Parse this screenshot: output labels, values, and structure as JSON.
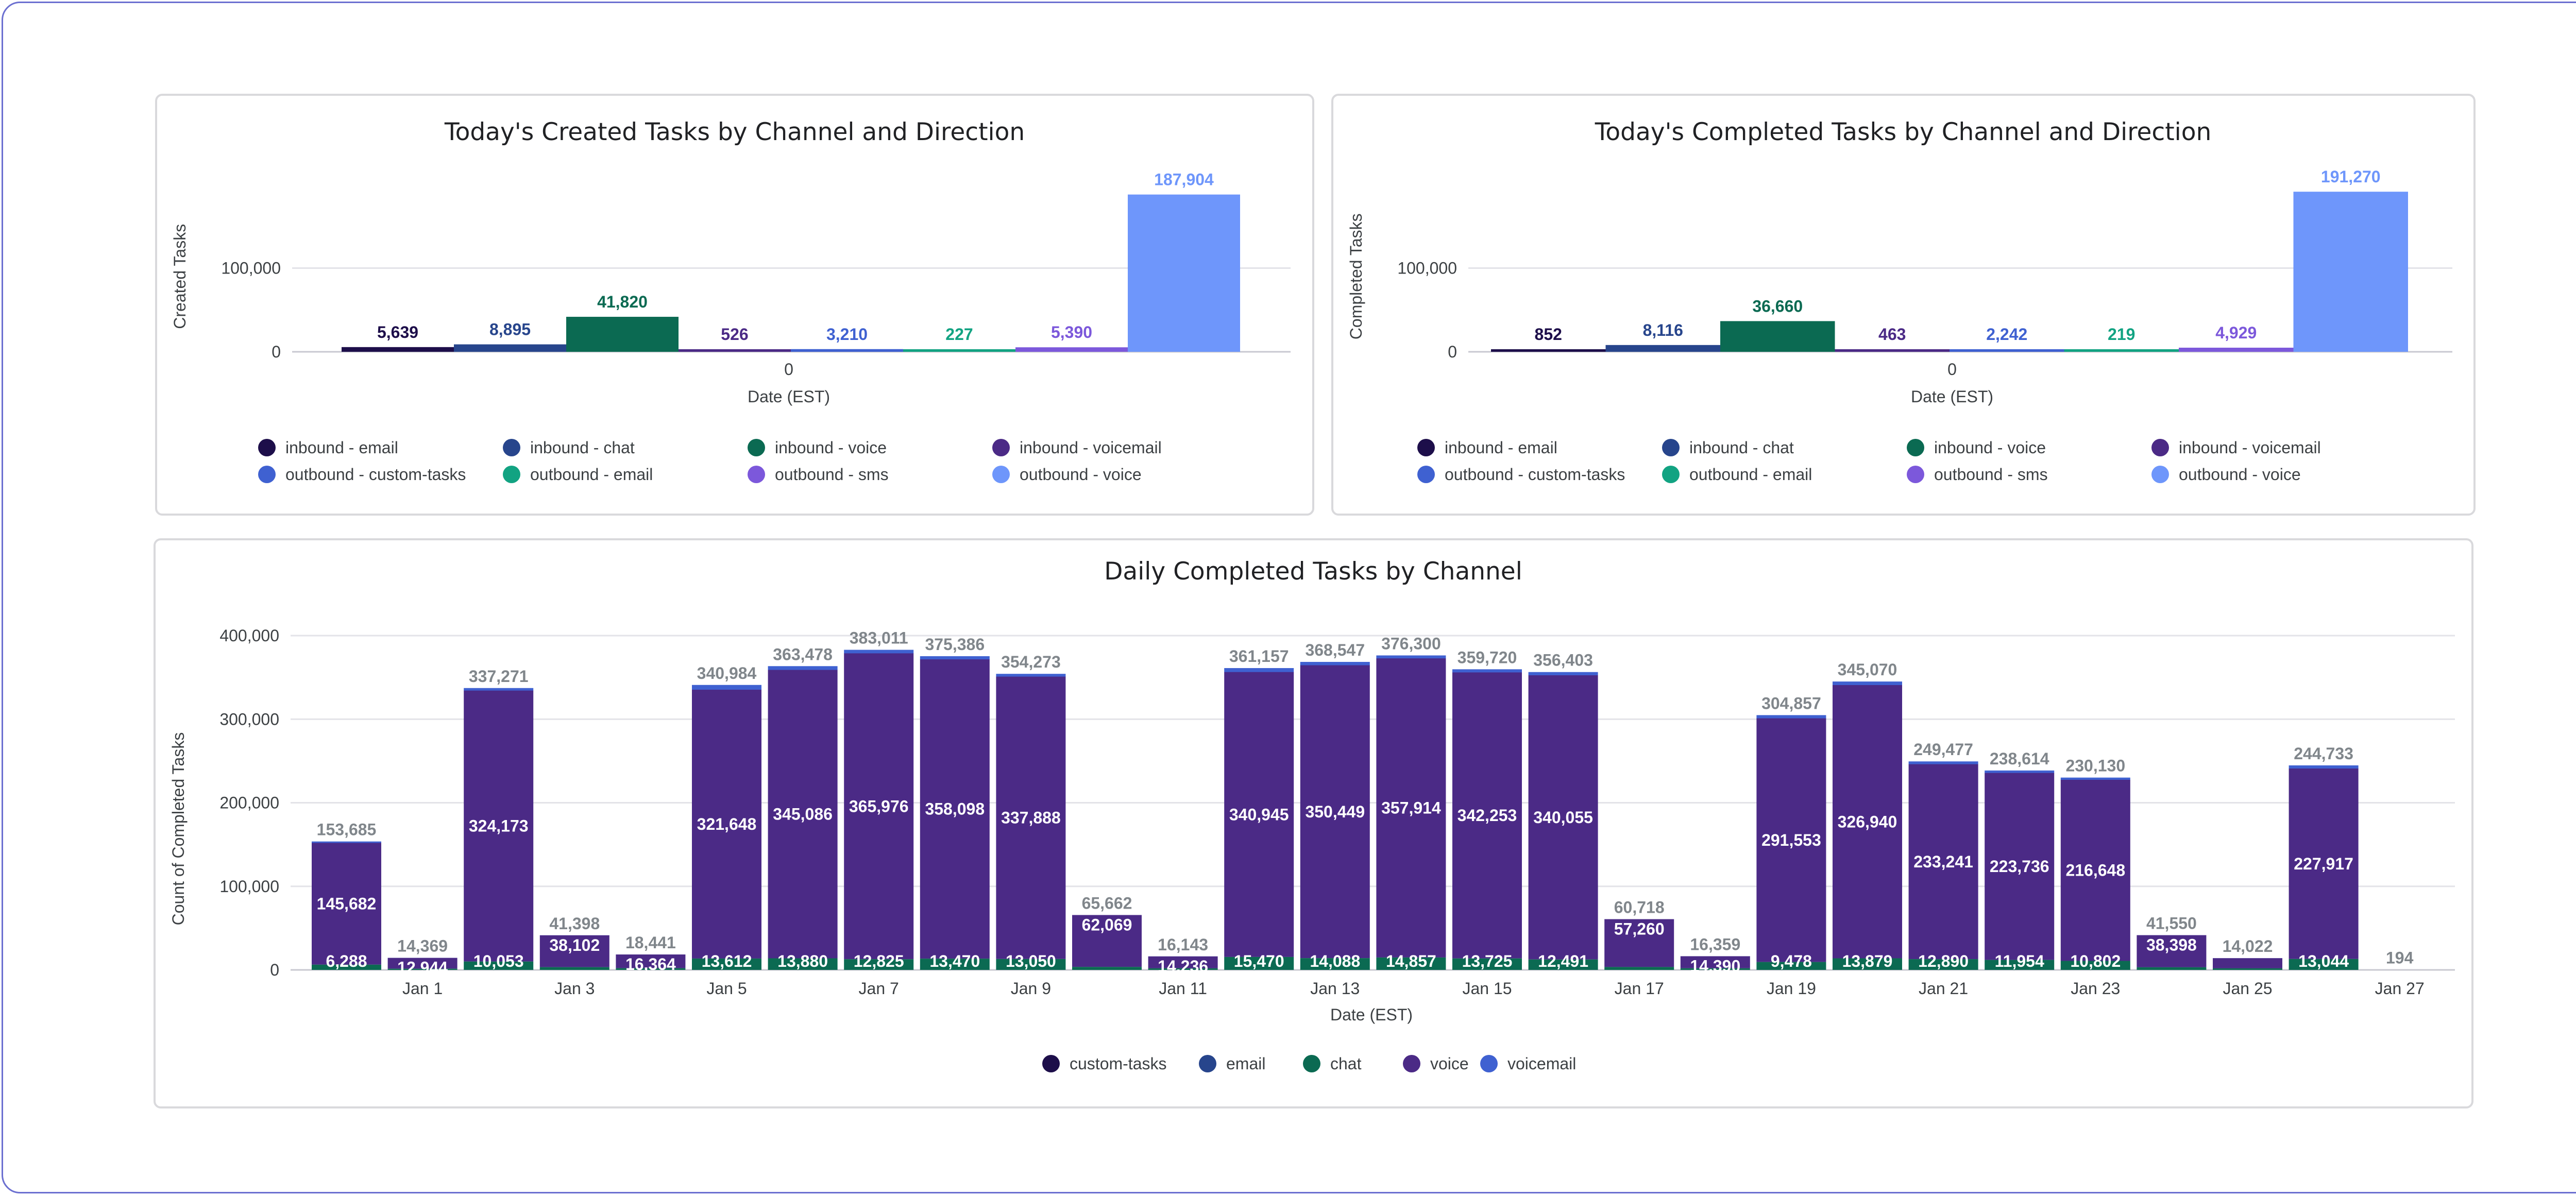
{
  "chart_data": [
    {
      "id": "created",
      "type": "bar",
      "title": "Today's Created Tasks by Channel and Direction",
      "xlabel": "Date (EST)",
      "ylabel": "Created Tasks",
      "categories": [
        "0"
      ],
      "yticks": [
        {
          "v": 0,
          "t": "0"
        },
        {
          "v": 100000,
          "t": "100,000"
        }
      ],
      "ylim": [
        0,
        200000
      ],
      "grid": true,
      "legend_position": "bottom",
      "series": [
        {
          "name": "inbound - email",
          "value": 5639,
          "label": "5,639",
          "color": "#1d0e4a"
        },
        {
          "name": "inbound - chat",
          "value": 8895,
          "label": "8,895",
          "color": "#27458c"
        },
        {
          "name": "inbound - voice",
          "value": 41820,
          "label": "41,820",
          "color": "#0b6a52"
        },
        {
          "name": "inbound - voicemail",
          "value": 526,
          "label": "526",
          "color": "#4b2a86"
        },
        {
          "name": "outbound - custom-tasks",
          "value": 3210,
          "label": "3,210",
          "color": "#3f61d1"
        },
        {
          "name": "outbound - email",
          "value": 227,
          "label": "227",
          "color": "#12a382"
        },
        {
          "name": "outbound - sms",
          "value": 5390,
          "label": "5,390",
          "color": "#7c58db"
        },
        {
          "name": "outbound - voice",
          "value": 187904,
          "label": "187,904",
          "color": "#6e96fb"
        }
      ]
    },
    {
      "id": "completed",
      "type": "bar",
      "title": "Today's Completed Tasks by Channel and Direction",
      "xlabel": "Date (EST)",
      "ylabel": "Completed Tasks",
      "categories": [
        "0"
      ],
      "yticks": [
        {
          "v": 0,
          "t": "0"
        },
        {
          "v": 100000,
          "t": "100,000"
        }
      ],
      "ylim": [
        0,
        200000
      ],
      "grid": true,
      "legend_position": "bottom",
      "series": [
        {
          "name": "inbound - email",
          "value": 852,
          "label": "852",
          "color": "#1d0e4a"
        },
        {
          "name": "inbound - chat",
          "value": 8116,
          "label": "8,116",
          "color": "#27458c"
        },
        {
          "name": "inbound - voice",
          "value": 36660,
          "label": "36,660",
          "color": "#0b6a52"
        },
        {
          "name": "inbound - voicemail",
          "value": 463,
          "label": "463",
          "color": "#4b2a86"
        },
        {
          "name": "outbound - custom-tasks",
          "value": 2242,
          "label": "2,242",
          "color": "#3f61d1"
        },
        {
          "name": "outbound - email",
          "value": 219,
          "label": "219",
          "color": "#12a382"
        },
        {
          "name": "outbound - sms",
          "value": 4929,
          "label": "4,929",
          "color": "#7c58db"
        },
        {
          "name": "outbound - voice",
          "value": 191270,
          "label": "191,270",
          "color": "#6e96fb"
        }
      ]
    },
    {
      "id": "daily",
      "type": "bar",
      "stacked": true,
      "title": "Daily Completed Tasks by Channel",
      "xlabel": "Date (EST)",
      "ylabel": "Count of Completed Tasks",
      "yticks": [
        {
          "v": 0,
          "t": "0"
        },
        {
          "v": 100000,
          "t": "100,000"
        },
        {
          "v": 200000,
          "t": "200,000"
        },
        {
          "v": 300000,
          "t": "300,000"
        },
        {
          "v": 400000,
          "t": "400,000"
        }
      ],
      "ylim": [
        0,
        400000
      ],
      "grid": true,
      "legend_position": "bottom",
      "x_tick_labels": [
        "Jan 1",
        "Jan 3",
        "Jan 5",
        "Jan 7",
        "Jan 9",
        "Jan 11",
        "Jan 13",
        "Jan 15",
        "Jan 17",
        "Jan 19",
        "Jan 21",
        "Jan 23",
        "Jan 25",
        "Jan 27"
      ],
      "legend": [
        {
          "name": "custom-tasks",
          "color": "#1d0e4a"
        },
        {
          "name": "email",
          "color": "#27458c"
        },
        {
          "name": "chat",
          "color": "#0b6a52"
        },
        {
          "name": "voice",
          "color": "#4b2a86"
        },
        {
          "name": "voicemail",
          "color": "#3f61d1"
        }
      ],
      "days": [
        {
          "chat": 6288,
          "chat_label": "6,288",
          "voice": 145682,
          "voice_label": "145,682",
          "total": 153685,
          "total_label": "153,685"
        },
        {
          "chat": 1425,
          "chat_label": "",
          "voice": 12944,
          "voice_label": "12,944",
          "total": 14369,
          "total_label": "14,369"
        },
        {
          "chat": 10053,
          "chat_label": "10,053",
          "voice": 324173,
          "voice_label": "324,173",
          "total": 337271,
          "total_label": "337,271"
        },
        {
          "chat": 3296,
          "chat_label": "",
          "voice": 38102,
          "voice_label": "38,102",
          "total": 41398,
          "total_label": "41,398"
        },
        {
          "chat": 2077,
          "chat_label": "",
          "voice": 16364,
          "voice_label": "16,364",
          "total": 18441,
          "total_label": "18,441"
        },
        {
          "chat": 13612,
          "chat_label": "13,612",
          "voice": 321648,
          "voice_label": "321,648",
          "total": 340984,
          "total_label": "340,984"
        },
        {
          "chat": 13880,
          "chat_label": "13,880",
          "voice": 345086,
          "voice_label": "345,086",
          "total": 363478,
          "total_label": "363,478"
        },
        {
          "chat": 12825,
          "chat_label": "12,825",
          "voice": 365976,
          "voice_label": "365,976",
          "total": 383011,
          "total_label": "383,011"
        },
        {
          "chat": 13470,
          "chat_label": "13,470",
          "voice": 358098,
          "voice_label": "358,098",
          "total": 375386,
          "total_label": "375,386"
        },
        {
          "chat": 13050,
          "chat_label": "13,050",
          "voice": 337888,
          "voice_label": "337,888",
          "total": 354273,
          "total_label": "354,273"
        },
        {
          "chat": 3593,
          "chat_label": "",
          "voice": 62069,
          "voice_label": "62,069",
          "total": 65662,
          "total_label": "65,662"
        },
        {
          "chat": 1907,
          "chat_label": "",
          "voice": 14236,
          "voice_label": "14,236",
          "total": 16143,
          "total_label": "16,143"
        },
        {
          "chat": 15470,
          "chat_label": "15,470",
          "voice": 340945,
          "voice_label": "340,945",
          "total": 361157,
          "total_label": "361,157"
        },
        {
          "chat": 14088,
          "chat_label": "14,088",
          "voice": 350449,
          "voice_label": "350,449",
          "total": 368547,
          "total_label": "368,547"
        },
        {
          "chat": 14857,
          "chat_label": "14,857",
          "voice": 357914,
          "voice_label": "357,914",
          "total": 376300,
          "total_label": "376,300"
        },
        {
          "chat": 13725,
          "chat_label": "13,725",
          "voice": 342253,
          "voice_label": "342,253",
          "total": 359720,
          "total_label": "359,720"
        },
        {
          "chat": 12491,
          "chat_label": "12,491",
          "voice": 340055,
          "voice_label": "340,055",
          "total": 356403,
          "total_label": "356,403"
        },
        {
          "chat": 3458,
          "chat_label": "",
          "voice": 57260,
          "voice_label": "57,260",
          "total": 60718,
          "total_label": "60,718"
        },
        {
          "chat": 1969,
          "chat_label": "",
          "voice": 14390,
          "voice_label": "14,390",
          "total": 16359,
          "total_label": "16,359"
        },
        {
          "chat": 9478,
          "chat_label": "9,478",
          "voice": 291553,
          "voice_label": "291,553",
          "total": 304857,
          "total_label": "304,857"
        },
        {
          "chat": 13879,
          "chat_label": "13,879",
          "voice": 326940,
          "voice_label": "326,940",
          "total": 345070,
          "total_label": "345,070"
        },
        {
          "chat": 12890,
          "chat_label": "12,890",
          "voice": 233241,
          "voice_label": "233,241",
          "total": 249477,
          "total_label": "249,477"
        },
        {
          "chat": 11954,
          "chat_label": "11,954",
          "voice": 223736,
          "voice_label": "223,736",
          "total": 238614,
          "total_label": "238,614"
        },
        {
          "chat": 10802,
          "chat_label": "10,802",
          "voice": 216648,
          "voice_label": "216,648",
          "total": 230130,
          "total_label": "230,130"
        },
        {
          "chat": 3152,
          "chat_label": "",
          "voice": 38398,
          "voice_label": "38,398",
          "total": 41550,
          "total_label": "41,550"
        },
        {
          "chat": 1900,
          "chat_label": "",
          "voice": 12122,
          "voice_label": "",
          "total": 14022,
          "total_label": "14,022"
        },
        {
          "chat": 13044,
          "chat_label": "13,044",
          "voice": 227917,
          "voice_label": "227,917",
          "total": 244733,
          "total_label": "244,733"
        },
        {
          "chat": 0,
          "chat_label": "",
          "voice": 0,
          "voice_label": "",
          "total": 194,
          "total_label": "194"
        }
      ]
    }
  ]
}
